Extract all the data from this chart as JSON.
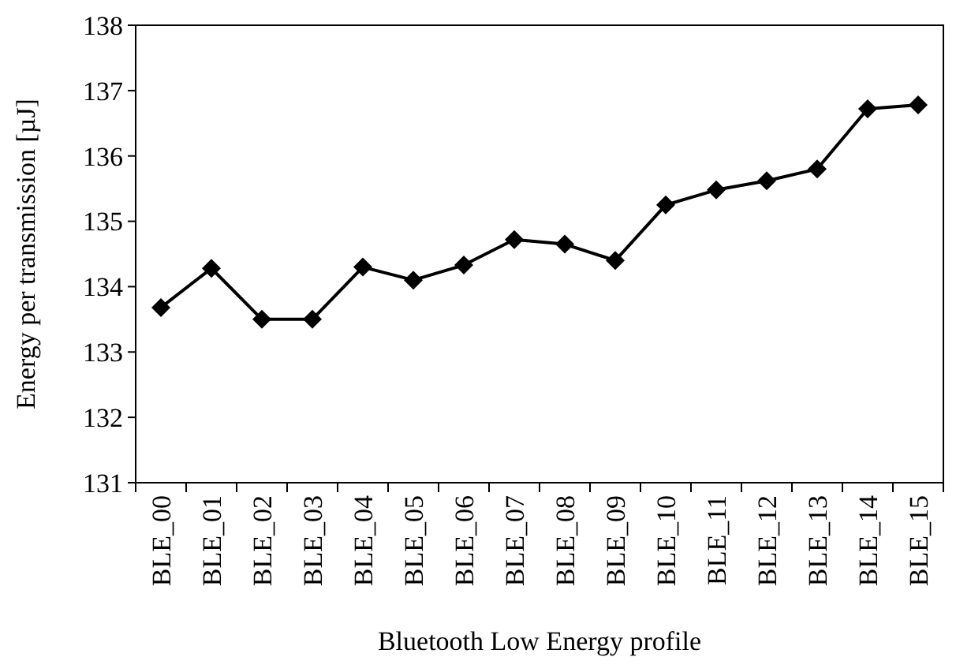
{
  "chart_data": {
    "type": "line",
    "xlabel": "Bluetooth Low Energy profile",
    "ylabel": "Energy per transmission [µJ]",
    "categories": [
      "BLE_00",
      "BLE_01",
      "BLE_02",
      "BLE_03",
      "BLE_04",
      "BLE_05",
      "BLE_06",
      "BLE_07",
      "BLE_08",
      "BLE_09",
      "BLE_10",
      "BLE_11",
      "BLE_12",
      "BLE_13",
      "BLE_14",
      "BLE_15"
    ],
    "series": [
      {
        "color": "#000000",
        "values": [
          133.68,
          134.28,
          133.5,
          133.5,
          134.3,
          134.1,
          134.33,
          134.72,
          134.65,
          134.4,
          135.25,
          135.48,
          135.62,
          135.8,
          136.72,
          136.78
        ]
      }
    ],
    "ylim": [
      131,
      138
    ],
    "yticks": [
      131,
      132,
      133,
      134,
      135,
      136,
      137,
      138
    ],
    "grid": false,
    "marker": "diamond",
    "line_style": "solid"
  }
}
